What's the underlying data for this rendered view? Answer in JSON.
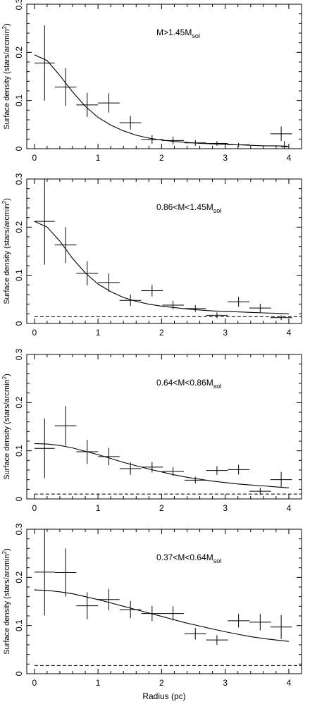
{
  "xlabel": "Radius (pc)",
  "chart_data": [
    {
      "type": "scatter",
      "label_main": "M>1.45M",
      "label_sub": "sol",
      "ylabel_pre": "Surface density (stars/arcmin",
      "ylabel_sup": "2",
      "ylabel_post": ")",
      "xlim": [
        -0.12,
        4.2
      ],
      "ylim": [
        0,
        0.3
      ],
      "xticks": [
        0,
        1,
        2,
        3,
        4
      ],
      "yticks": [
        0,
        0.1,
        0.2,
        0.3
      ],
      "points": [
        {
          "x": 0.16,
          "y": 0.178,
          "xerr": 0.16,
          "yerr": 0.078
        },
        {
          "x": 0.49,
          "y": 0.128,
          "xerr": 0.17,
          "yerr": 0.039
        },
        {
          "x": 0.83,
          "y": 0.091,
          "xerr": 0.17,
          "yerr": 0.025
        },
        {
          "x": 1.17,
          "y": 0.095,
          "xerr": 0.17,
          "yerr": 0.02
        },
        {
          "x": 1.51,
          "y": 0.054,
          "xerr": 0.17,
          "yerr": 0.014
        },
        {
          "x": 1.85,
          "y": 0.019,
          "xerr": 0.17,
          "yerr": 0.009
        },
        {
          "x": 2.18,
          "y": 0.017,
          "xerr": 0.17,
          "yerr": 0.008
        },
        {
          "x": 2.53,
          "y": 0.012,
          "xerr": 0.17,
          "yerr": 0.006
        },
        {
          "x": 2.87,
          "y": 0.011,
          "xerr": 0.17,
          "yerr": 0.005
        },
        {
          "x": 3.21,
          "y": 0.008,
          "xerr": 0.17,
          "yerr": 0.004
        },
        {
          "x": 3.88,
          "y": 0.031,
          "xerr": 0.17,
          "yerr": 0.015
        },
        {
          "x": 3.93,
          "y": 0.004,
          "xerr": 0.05,
          "yerr": 0.012
        }
      ],
      "model": {
        "x": [
          0,
          0.2,
          0.4,
          0.6,
          0.8,
          1.0,
          1.2,
          1.4,
          1.6,
          1.8,
          2.0,
          2.2,
          2.4,
          2.6,
          2.8,
          3.0,
          3.2,
          3.4,
          3.6,
          3.8,
          4.0
        ],
        "y": [
          0.195,
          0.183,
          0.152,
          0.118,
          0.088,
          0.065,
          0.049,
          0.037,
          0.028,
          0.022,
          0.018,
          0.015,
          0.013,
          0.011,
          0.01,
          0.009,
          0.008,
          0.007,
          0.006,
          0.006,
          0.005
        ]
      },
      "background": null
    },
    {
      "type": "scatter",
      "label_main": "0.86<M<1.45M",
      "label_sub": "sol",
      "ylabel_pre": "Surface density (stars/arcmin",
      "ylabel_sup": "2",
      "ylabel_post": ")",
      "xlim": [
        -0.12,
        4.2
      ],
      "ylim": [
        0,
        0.3
      ],
      "xticks": [
        0,
        1,
        2,
        3,
        4
      ],
      "yticks": [
        0,
        0.1,
        0.2,
        0.3
      ],
      "points": [
        {
          "x": 0.16,
          "y": 0.212,
          "xerr": 0.16,
          "yerr": 0.09
        },
        {
          "x": 0.49,
          "y": 0.163,
          "xerr": 0.17,
          "yerr": 0.037
        },
        {
          "x": 0.83,
          "y": 0.104,
          "xerr": 0.17,
          "yerr": 0.025
        },
        {
          "x": 1.17,
          "y": 0.085,
          "xerr": 0.17,
          "yerr": 0.019
        },
        {
          "x": 1.51,
          "y": 0.048,
          "xerr": 0.17,
          "yerr": 0.012
        },
        {
          "x": 1.85,
          "y": 0.068,
          "xerr": 0.17,
          "yerr": 0.012
        },
        {
          "x": 2.18,
          "y": 0.038,
          "xerr": 0.17,
          "yerr": 0.009
        },
        {
          "x": 2.53,
          "y": 0.031,
          "xerr": 0.17,
          "yerr": 0.007
        },
        {
          "x": 2.87,
          "y": 0.017,
          "xerr": 0.17,
          "yerr": 0.006
        },
        {
          "x": 3.21,
          "y": 0.045,
          "xerr": 0.17,
          "yerr": 0.01
        },
        {
          "x": 3.55,
          "y": 0.032,
          "xerr": 0.17,
          "yerr": 0.009
        },
        {
          "x": 3.88,
          "y": 0.012,
          "xerr": 0.17,
          "yerr": 0.005
        }
      ],
      "model": {
        "x": [
          0,
          0.2,
          0.4,
          0.6,
          0.8,
          1.0,
          1.2,
          1.4,
          1.6,
          1.8,
          2.0,
          2.2,
          2.4,
          2.6,
          2.8,
          3.0,
          3.2,
          3.4,
          3.6,
          3.8,
          4.0
        ],
        "y": [
          0.212,
          0.2,
          0.171,
          0.135,
          0.105,
          0.082,
          0.066,
          0.054,
          0.046,
          0.04,
          0.036,
          0.033,
          0.03,
          0.028,
          0.026,
          0.025,
          0.024,
          0.023,
          0.022,
          0.021,
          0.02
        ]
      },
      "background": 0.014
    },
    {
      "type": "scatter",
      "label_main": "0.64<M<0.86M",
      "label_sub": "sol",
      "ylabel_pre": "Surface density (stars/arcmin",
      "ylabel_sup": "2",
      "ylabel_post": ")",
      "xlim": [
        -0.12,
        4.2
      ],
      "ylim": [
        0,
        0.3
      ],
      "xticks": [
        0,
        1,
        2,
        3,
        4
      ],
      "yticks": [
        0,
        0.1,
        0.2,
        0.3
      ],
      "points": [
        {
          "x": 0.16,
          "y": 0.105,
          "xerr": 0.16,
          "yerr": 0.062
        },
        {
          "x": 0.49,
          "y": 0.152,
          "xerr": 0.17,
          "yerr": 0.041
        },
        {
          "x": 0.83,
          "y": 0.098,
          "xerr": 0.17,
          "yerr": 0.025
        },
        {
          "x": 1.17,
          "y": 0.088,
          "xerr": 0.17,
          "yerr": 0.018
        },
        {
          "x": 1.51,
          "y": 0.063,
          "xerr": 0.17,
          "yerr": 0.013
        },
        {
          "x": 1.85,
          "y": 0.066,
          "xerr": 0.17,
          "yerr": 0.011
        },
        {
          "x": 2.18,
          "y": 0.057,
          "xerr": 0.17,
          "yerr": 0.009
        },
        {
          "x": 2.53,
          "y": 0.039,
          "xerr": 0.17,
          "yerr": 0.007
        },
        {
          "x": 2.87,
          "y": 0.059,
          "xerr": 0.17,
          "yerr": 0.009
        },
        {
          "x": 3.21,
          "y": 0.061,
          "xerr": 0.17,
          "yerr": 0.01
        },
        {
          "x": 3.55,
          "y": 0.016,
          "xerr": 0.17,
          "yerr": 0.007
        },
        {
          "x": 3.88,
          "y": 0.04,
          "xerr": 0.17,
          "yerr": 0.016
        }
      ],
      "model": {
        "x": [
          0,
          0.2,
          0.4,
          0.6,
          0.8,
          1.0,
          1.2,
          1.4,
          1.6,
          1.8,
          2.0,
          2.2,
          2.4,
          2.6,
          2.8,
          3.0,
          3.2,
          3.4,
          3.6,
          3.8,
          4.0
        ],
        "y": [
          0.115,
          0.114,
          0.111,
          0.106,
          0.099,
          0.092,
          0.084,
          0.076,
          0.069,
          0.062,
          0.056,
          0.05,
          0.045,
          0.041,
          0.037,
          0.034,
          0.031,
          0.029,
          0.027,
          0.025,
          0.023
        ]
      },
      "background": 0.01
    },
    {
      "type": "scatter",
      "label_main": "0.37<M<0.64M",
      "label_sub": "sol",
      "ylabel_pre": "Surface density (stars/arcmin",
      "ylabel_sup": "2",
      "ylabel_post": ")",
      "xlim": [
        -0.12,
        4.2
      ],
      "ylim": [
        0,
        0.3
      ],
      "xticks": [
        0,
        1,
        2,
        3,
        4
      ],
      "yticks": [
        0,
        0.1,
        0.2,
        0.3
      ],
      "points": [
        {
          "x": 0.16,
          "y": 0.211,
          "xerr": 0.16,
          "yerr": 0.09
        },
        {
          "x": 0.49,
          "y": 0.21,
          "xerr": 0.17,
          "yerr": 0.05
        },
        {
          "x": 0.83,
          "y": 0.141,
          "xerr": 0.17,
          "yerr": 0.028
        },
        {
          "x": 1.17,
          "y": 0.154,
          "xerr": 0.17,
          "yerr": 0.022
        },
        {
          "x": 1.51,
          "y": 0.133,
          "xerr": 0.17,
          "yerr": 0.018
        },
        {
          "x": 1.85,
          "y": 0.125,
          "xerr": 0.17,
          "yerr": 0.016
        },
        {
          "x": 2.18,
          "y": 0.125,
          "xerr": 0.17,
          "yerr": 0.015
        },
        {
          "x": 2.53,
          "y": 0.083,
          "xerr": 0.17,
          "yerr": 0.012
        },
        {
          "x": 2.87,
          "y": 0.07,
          "xerr": 0.17,
          "yerr": 0.01
        },
        {
          "x": 3.21,
          "y": 0.11,
          "xerr": 0.17,
          "yerr": 0.014
        },
        {
          "x": 3.55,
          "y": 0.107,
          "xerr": 0.17,
          "yerr": 0.017
        },
        {
          "x": 3.88,
          "y": 0.097,
          "xerr": 0.17,
          "yerr": 0.025
        }
      ],
      "model": {
        "x": [
          0,
          0.2,
          0.4,
          0.6,
          0.8,
          1.0,
          1.2,
          1.4,
          1.6,
          1.8,
          2.0,
          2.2,
          2.4,
          2.6,
          2.8,
          3.0,
          3.2,
          3.4,
          3.6,
          3.8,
          4.0
        ],
        "y": [
          0.174,
          0.173,
          0.17,
          0.166,
          0.16,
          0.154,
          0.147,
          0.14,
          0.133,
          0.126,
          0.119,
          0.112,
          0.105,
          0.099,
          0.093,
          0.087,
          0.082,
          0.077,
          0.073,
          0.07,
          0.067
        ]
      },
      "background": 0.017
    }
  ]
}
